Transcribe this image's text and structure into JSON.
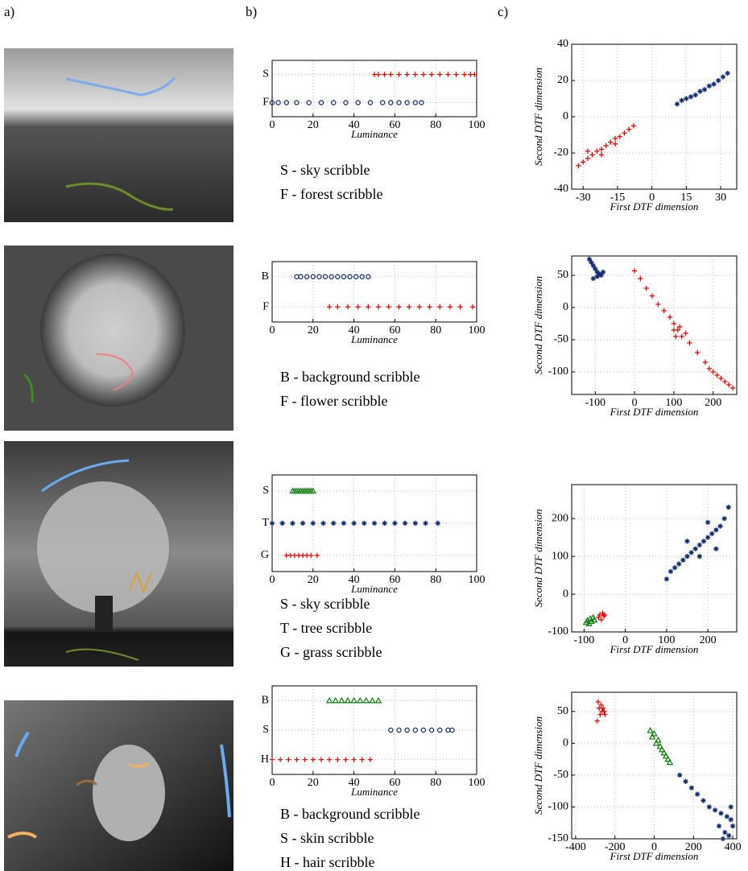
{
  "panel_labels": [
    "a)",
    "b)",
    "c)"
  ],
  "chart_data": [
    {
      "type": "strip",
      "xlabel": "Luminance",
      "xlim": [
        0,
        100
      ],
      "xticks": [
        0,
        20,
        40,
        60,
        80,
        100
      ],
      "grid": true,
      "categories": [
        "S",
        "F"
      ],
      "series": [
        {
          "name": "S - sky scribble",
          "color": "#e00000",
          "marker": "plus",
          "values": [
            50,
            52,
            55,
            58,
            62,
            66,
            70,
            74,
            78,
            82,
            86,
            90,
            94,
            97,
            99
          ]
        },
        {
          "name": "F - forest scribble",
          "color": "#112a6e",
          "marker": "circle",
          "values": [
            0,
            3,
            7,
            12,
            18,
            24,
            30,
            36,
            42,
            48,
            54,
            58,
            62,
            66,
            70,
            73
          ]
        }
      ]
    },
    {
      "type": "scatter",
      "xlabel": "First DTF dimension",
      "ylabel": "Second DTF dimension",
      "xlim": [
        -35,
        37
      ],
      "ylim": [
        -40,
        40
      ],
      "xticks": [
        -30,
        -15,
        0,
        15,
        30
      ],
      "yticks": [
        -40,
        -20,
        0,
        20,
        40
      ],
      "grid": true,
      "series": [
        {
          "color": "#e00000",
          "marker": "plus",
          "x": [
            -32,
            -30,
            -28,
            -26,
            -24,
            -22,
            -20,
            -18,
            -16,
            -14,
            -12,
            -10,
            -8,
            -28,
            -22,
            -16
          ],
          "y": [
            -27,
            -25,
            -23,
            -21,
            -19,
            -18,
            -16,
            -14,
            -12,
            -11,
            -9,
            -7,
            -5,
            -19,
            -21,
            -15
          ]
        },
        {
          "color": "#112a6e",
          "marker": "star",
          "x": [
            11,
            13,
            15,
            17,
            19,
            21,
            23,
            25,
            27,
            29,
            31,
            33
          ],
          "y": [
            7,
            9,
            10,
            11,
            12,
            14,
            15,
            17,
            18,
            20,
            22,
            24
          ]
        }
      ]
    },
    {
      "type": "strip",
      "xlabel": "Luminance",
      "xlim": [
        0,
        100
      ],
      "xticks": [
        0,
        20,
        40,
        60,
        80,
        100
      ],
      "grid": true,
      "categories": [
        "B",
        "F"
      ],
      "series": [
        {
          "name": "B - background scribble",
          "color": "#112a6e",
          "marker": "circle",
          "values": [
            12,
            14,
            17,
            20,
            23,
            26,
            29,
            32,
            35,
            38,
            41,
            44,
            47
          ]
        },
        {
          "name": "F - flower scribble",
          "color": "#e00000",
          "marker": "plus",
          "values": [
            28,
            32,
            37,
            42,
            47,
            52,
            57,
            62,
            67,
            72,
            77,
            82,
            87,
            92,
            98
          ]
        }
      ]
    },
    {
      "type": "scatter",
      "xlabel": "First DTF dimension",
      "ylabel": "Second DTF dimension",
      "xlim": [
        -160,
        260
      ],
      "ylim": [
        -135,
        80
      ],
      "xticks": [
        -100,
        0,
        100,
        200
      ],
      "yticks": [
        -100,
        -50,
        0,
        50
      ],
      "grid": true,
      "series": [
        {
          "color": "#112a6e",
          "marker": "star",
          "x": [
            -115,
            -110,
            -105,
            -100,
            -95,
            -90,
            -85,
            -80,
            -105,
            -95
          ],
          "y": [
            75,
            70,
            65,
            60,
            55,
            52,
            50,
            55,
            45,
            48
          ]
        },
        {
          "color": "#e00000",
          "marker": "plus",
          "x": [
            0,
            15,
            30,
            45,
            60,
            75,
            90,
            100,
            110,
            120,
            130,
            115,
            100,
            105,
            140,
            160,
            180,
            190,
            200,
            210,
            220,
            230,
            240,
            250
          ],
          "y": [
            57,
            45,
            30,
            18,
            5,
            -5,
            -15,
            -25,
            -35,
            -45,
            -40,
            -30,
            -35,
            -45,
            -55,
            -70,
            -85,
            -95,
            -100,
            -105,
            -110,
            -115,
            -120,
            -125
          ]
        }
      ]
    },
    {
      "type": "strip",
      "xlabel": "Luminance",
      "xlim": [
        0,
        100
      ],
      "xticks": [
        0,
        20,
        40,
        60,
        80,
        100
      ],
      "grid": true,
      "categories": [
        "S",
        "T",
        "G"
      ],
      "series": [
        {
          "name": "S - sky scribble",
          "color": "#0a7d0a",
          "marker": "triangle",
          "values": [
            10,
            11,
            12,
            13,
            14,
            15,
            16,
            17,
            18,
            19,
            20
          ]
        },
        {
          "name": "T - tree scribble",
          "color": "#112a6e",
          "marker": "star",
          "values": [
            0,
            5,
            10,
            15,
            20,
            25,
            30,
            35,
            40,
            45,
            50,
            55,
            60,
            65,
            70,
            75,
            81
          ]
        },
        {
          "name": "G - grass scribble",
          "color": "#e00000",
          "marker": "plus",
          "values": [
            7,
            9,
            11,
            13,
            15,
            17,
            19,
            22
          ]
        }
      ]
    },
    {
      "type": "scatter",
      "xlabel": "First DTF dimension",
      "ylabel": "Second DTF dimension",
      "xlim": [
        -130,
        270
      ],
      "ylim": [
        -100,
        290
      ],
      "xticks": [
        -100,
        0,
        100,
        200
      ],
      "yticks": [
        -100,
        0,
        100,
        200
      ],
      "grid": true,
      "series": [
        {
          "color": "#112a6e",
          "marker": "star",
          "x": [
            100,
            110,
            120,
            130,
            140,
            150,
            160,
            170,
            180,
            190,
            200,
            210,
            220,
            230,
            240,
            250,
            150,
            180,
            200,
            220
          ],
          "y": [
            40,
            60,
            70,
            80,
            90,
            100,
            110,
            120,
            130,
            140,
            150,
            160,
            170,
            180,
            200,
            230,
            140,
            100,
            190,
            120
          ]
        },
        {
          "color": "#0a7d0a",
          "marker": "triangle",
          "x": [
            -95,
            -92,
            -88,
            -85,
            -82,
            -78,
            -75
          ],
          "y": [
            -75,
            -70,
            -78,
            -65,
            -72,
            -62,
            -68
          ]
        },
        {
          "color": "#e00000",
          "marker": "plus",
          "x": [
            -65,
            -62,
            -58,
            -55,
            -52,
            -50
          ],
          "y": [
            -62,
            -55,
            -68,
            -50,
            -58,
            -55
          ]
        }
      ]
    },
    {
      "type": "strip",
      "xlabel": "Luminance",
      "xlim": [
        0,
        100
      ],
      "xticks": [
        0,
        20,
        40,
        60,
        80,
        100
      ],
      "grid": true,
      "categories": [
        "B",
        "S",
        "H"
      ],
      "series": [
        {
          "name": "B - background scribble",
          "color": "#0a7d0a",
          "marker": "triangle",
          "values": [
            28,
            31,
            34,
            37,
            40,
            43,
            46,
            49,
            52
          ]
        },
        {
          "name": "S - skin scribble",
          "color": "#112a6e",
          "marker": "circle",
          "values": [
            58,
            62,
            66,
            70,
            74,
            78,
            82,
            86,
            88
          ]
        },
        {
          "name": "H - hair scribble",
          "color": "#e00000",
          "marker": "plus",
          "values": [
            0,
            4,
            8,
            12,
            16,
            20,
            24,
            28,
            32,
            36,
            40,
            44,
            48
          ]
        }
      ]
    },
    {
      "type": "scatter",
      "xlabel": "First DTF dimension",
      "ylabel": "Second DTF dimension",
      "xlim": [
        -420,
        420
      ],
      "ylim": [
        -150,
        80
      ],
      "xticks": [
        -400,
        -200,
        0,
        200,
        400
      ],
      "yticks": [
        -150,
        -100,
        -50,
        0,
        50
      ],
      "grid": true,
      "series": [
        {
          "color": "#e00000",
          "marker": "plus",
          "x": [
            -285,
            -280,
            -275,
            -270,
            -265,
            -260,
            -255,
            -250,
            -290
          ],
          "y": [
            65,
            55,
            45,
            60,
            50,
            55,
            50,
            45,
            35
          ]
        },
        {
          "color": "#0a7d0a",
          "marker": "triangle",
          "x": [
            -20,
            -10,
            0,
            10,
            20,
            30,
            40,
            50,
            60,
            70,
            80
          ],
          "y": [
            20,
            10,
            15,
            0,
            5,
            -5,
            -10,
            -15,
            -20,
            -25,
            -30
          ]
        },
        {
          "color": "#112a6e",
          "marker": "star",
          "x": [
            130,
            160,
            190,
            220,
            250,
            280,
            310,
            340,
            370,
            390,
            400,
            380,
            350,
            330,
            360,
            390
          ],
          "y": [
            -50,
            -60,
            -70,
            -80,
            -90,
            -100,
            -105,
            -110,
            -115,
            -120,
            -130,
            -145,
            -150,
            -130,
            -140,
            -100
          ]
        }
      ]
    }
  ]
}
